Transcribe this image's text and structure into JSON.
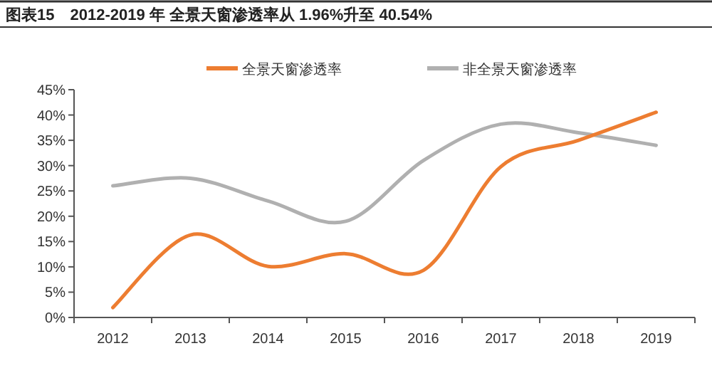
{
  "chart_data": {
    "type": "line",
    "title": "图表15　2012-2019 年 全景天窗渗透率从 1.96%升至 40.54%",
    "categories": [
      "2012",
      "2013",
      "2014",
      "2015",
      "2016",
      "2017",
      "2018",
      "2019"
    ],
    "series": [
      {
        "name": "全景天窗渗透率",
        "color": "#ed7d31",
        "values": [
          1.96,
          16.3,
          10.1,
          12.6,
          9.3,
          29.8,
          35,
          40.54
        ]
      },
      {
        "name": "非全景天窗渗透率",
        "color": "#b0b0b0",
        "values": [
          26,
          27.5,
          23,
          19,
          31,
          38.2,
          36.5,
          34
        ]
      }
    ],
    "ylim": [
      0,
      45
    ],
    "yticks": [
      {
        "value": 0,
        "label": "0%"
      },
      {
        "value": 5,
        "label": "5%"
      },
      {
        "value": 10,
        "label": "10%"
      },
      {
        "value": 15,
        "label": "15%"
      },
      {
        "value": 20,
        "label": "20%"
      },
      {
        "value": 25,
        "label": "25%"
      },
      {
        "value": 30,
        "label": "30%"
      },
      {
        "value": 35,
        "label": "35%"
      },
      {
        "value": 40,
        "label": "40%"
      },
      {
        "value": 45,
        "label": "45%"
      }
    ],
    "grid": false,
    "legend": "top",
    "marker": "none",
    "line_style": "solid"
  }
}
